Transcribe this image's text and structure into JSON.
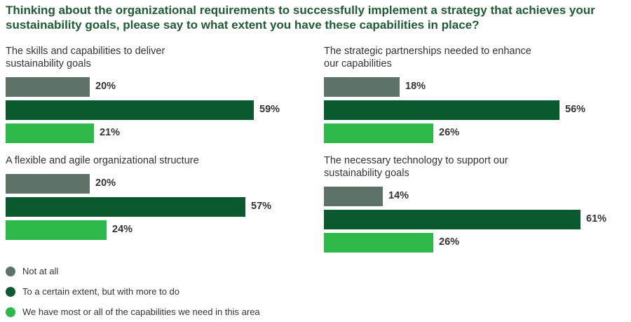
{
  "title": "Thinking about the organizational requirements to successfully implement a strategy that achieves your sustainability goals, please say to what extent you have these capabilities in place?",
  "colors": {
    "not_at_all": "#5f7268",
    "certain_extent": "#0b5a2f",
    "most_or_all": "#2db84a",
    "title": "#1f5b33"
  },
  "legend": [
    {
      "label": "Not at all",
      "color_key": "not_at_all"
    },
    {
      "label": "To a certain extent, but with more to do",
      "color_key": "certain_extent"
    },
    {
      "label": "We have most or all of the capabilities we need in this area",
      "color_key": "most_or_all"
    }
  ],
  "chart_data": [
    {
      "type": "bar",
      "title": "The skills and capabilities to deliver sustainability goals",
      "categories": [
        "Not at all",
        "To a certain extent, but with more to do",
        "We have most or all of the capabilities we need in this area"
      ],
      "values": [
        20,
        59,
        21
      ],
      "labels": [
        "20%",
        "59%",
        "21%"
      ]
    },
    {
      "type": "bar",
      "title": "The strategic partnerships needed to enhance our capabilities",
      "categories": [
        "Not at all",
        "To a certain extent, but with more to do",
        "We have most or all of the capabilities we need in this area"
      ],
      "values": [
        18,
        56,
        26
      ],
      "labels": [
        "18%",
        "56%",
        "26%"
      ]
    },
    {
      "type": "bar",
      "title": "A flexible and agile organizational structure",
      "categories": [
        "Not at all",
        "To a certain extent, but with more to do",
        "We have most or all of the capabilities we need in this area"
      ],
      "values": [
        20,
        57,
        24
      ],
      "labels": [
        "20%",
        "57%",
        "24%"
      ]
    },
    {
      "type": "bar",
      "title": "The necessary technology to support our sustainability goals",
      "categories": [
        "Not at all",
        "To a certain extent, but with more to do",
        "We have most or all of the capabilities we need in this area"
      ],
      "values": [
        14,
        61,
        26
      ],
      "labels": [
        "14%",
        "61%",
        "26%"
      ]
    }
  ]
}
